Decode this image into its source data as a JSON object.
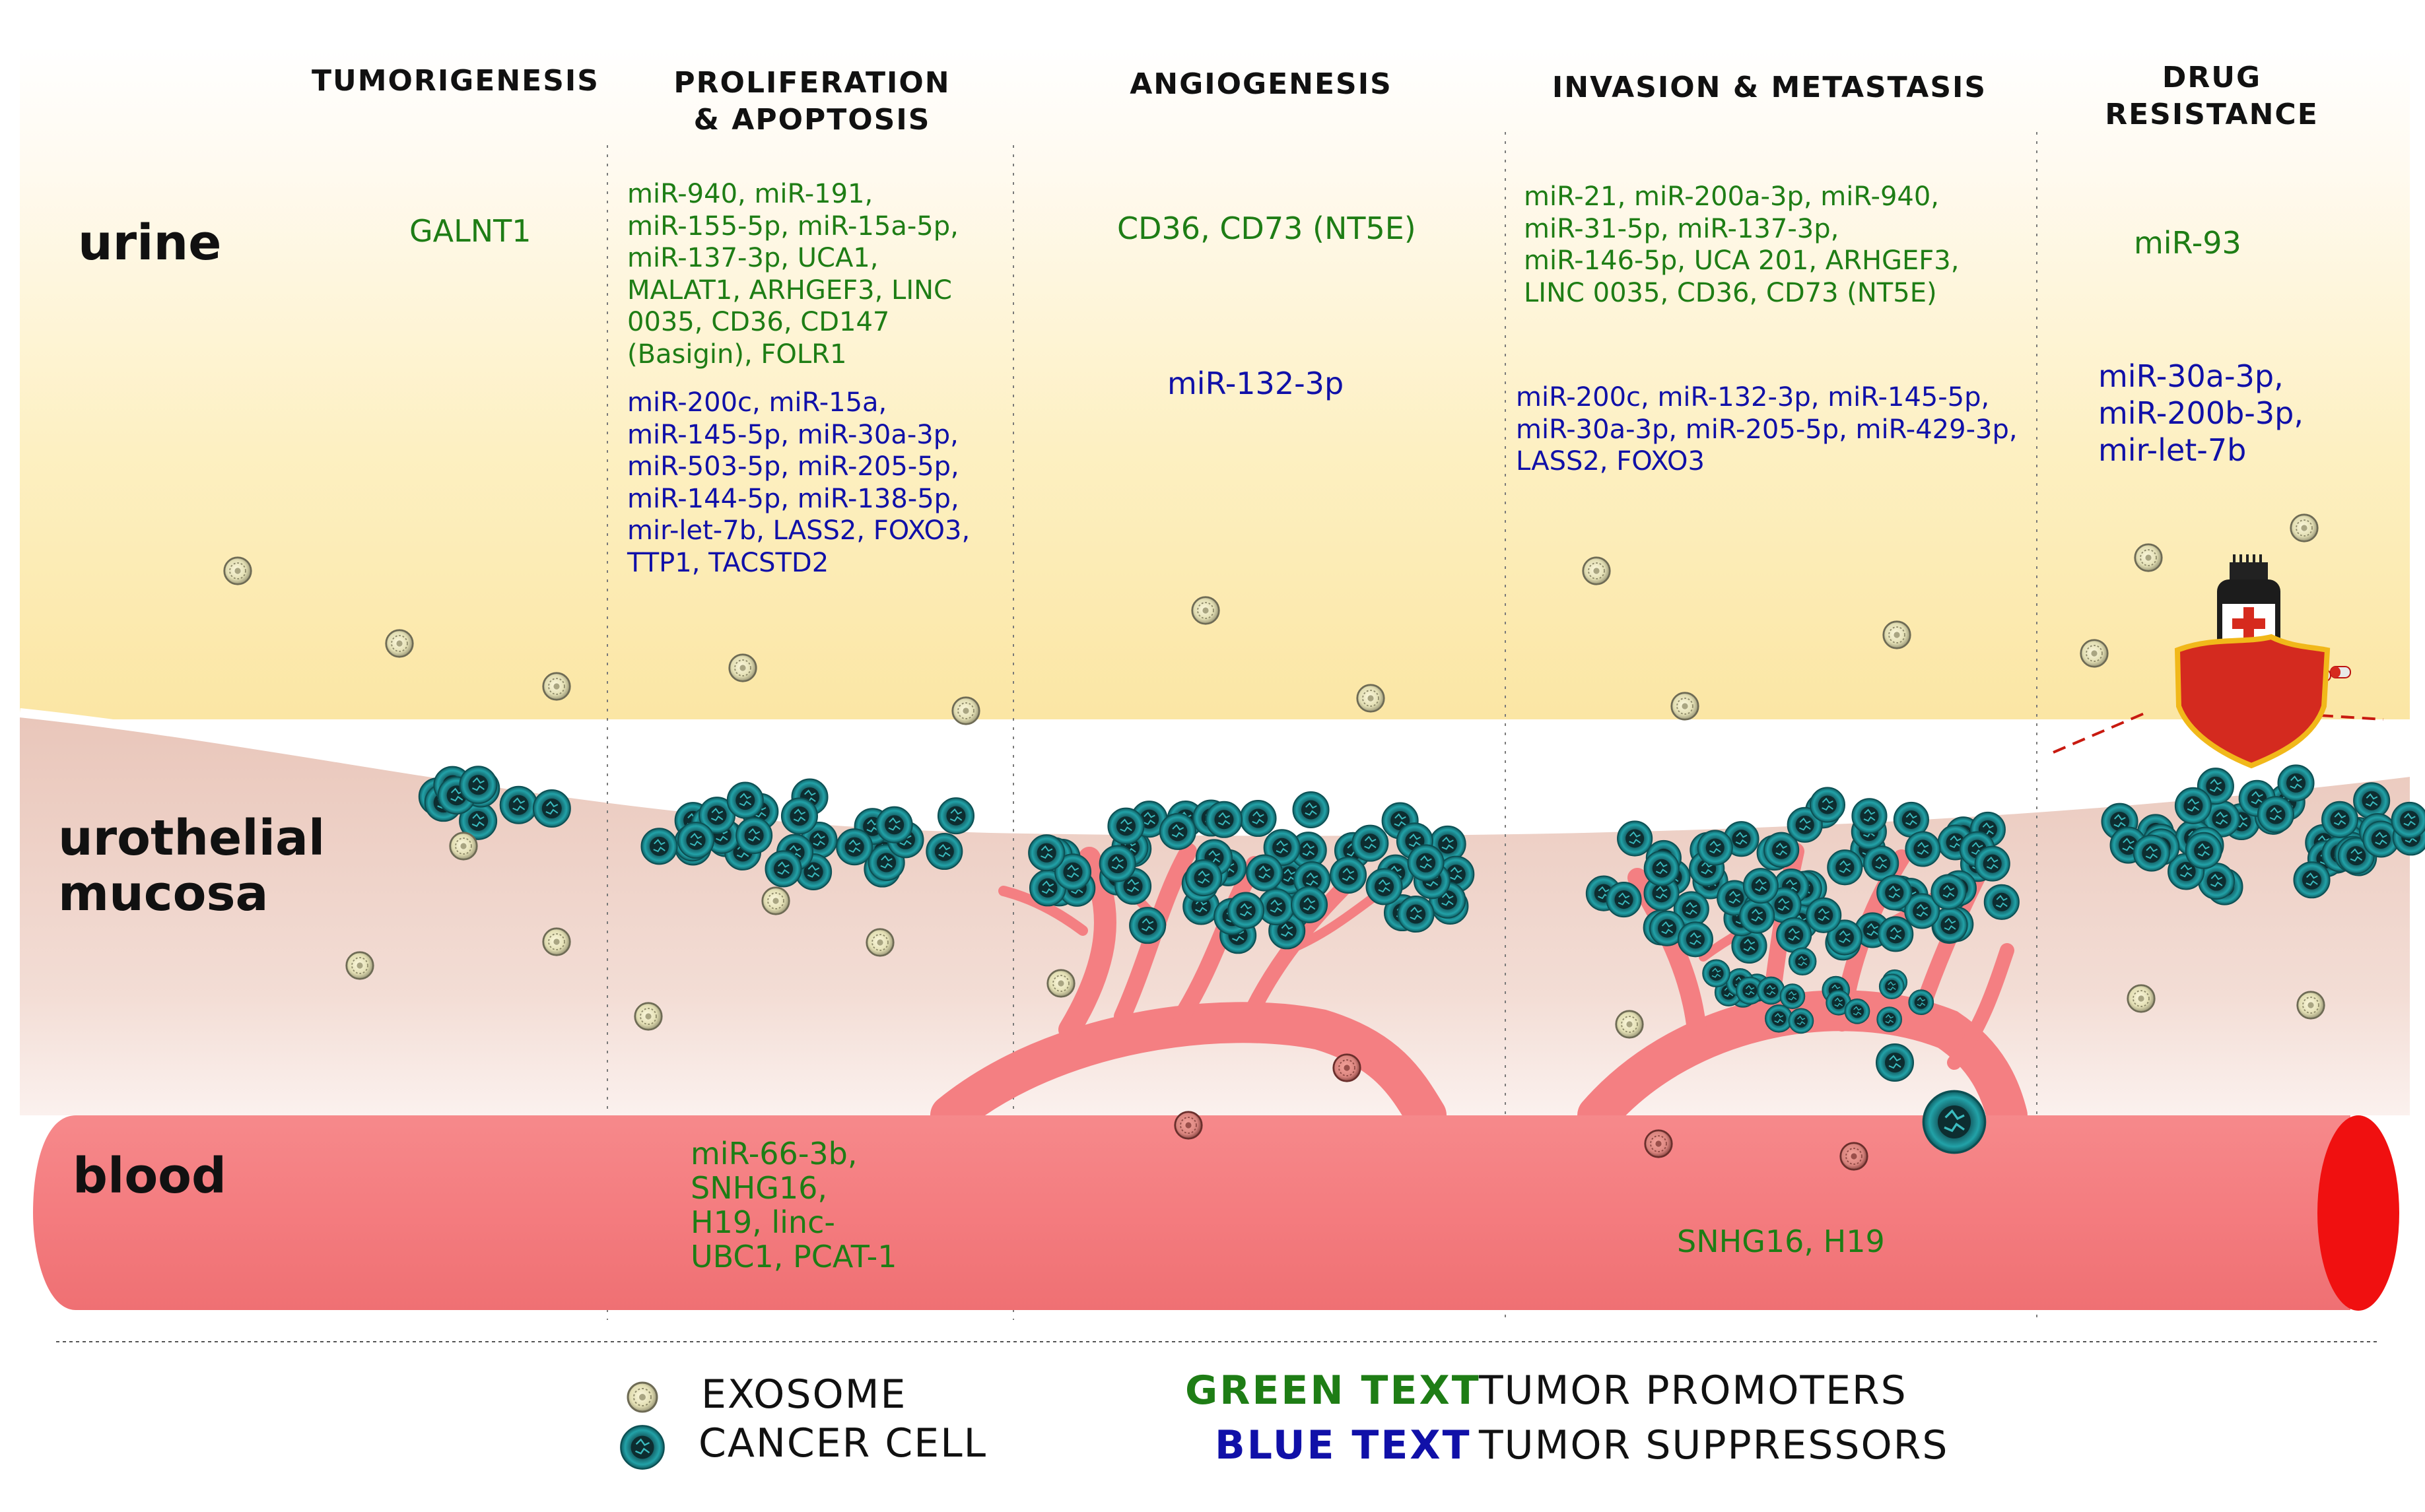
{
  "headers": {
    "tumorigenesis": "TUMORIGENESIS",
    "proliferation": "PROLIFERATION\n& APOPTOSIS",
    "angiogenesis": "ANGIOGENESIS",
    "invasion": "INVASION & METASTASIS",
    "drug_resistance": "DRUG\nRESISTANCE"
  },
  "layers": {
    "urine": "urine",
    "mucosa": "urothelial\nmucosa",
    "blood": "blood"
  },
  "urine": {
    "tumorigenesis_promoters": "GALNT1",
    "proliferation_promoters": "miR-940, miR-191,\nmiR-155-5p, miR-15a-5p,\nmiR-137-3p, UCA1,\nMALAT1, ARHGEF3, LINC\n0035, CD36, CD147\n(Basigin), FOLR1",
    "proliferation_suppressors": "miR-200c, miR-15a,\nmiR-145-5p, miR-30a-3p,\nmiR-503-5p, miR-205-5p,\nmiR-144-5p, miR-138-5p,\nmir-let-7b, LASS2, FOXO3,\nTTP1, TACSTD2",
    "angiogenesis_promoters": "CD36, CD73 (NT5E)",
    "angiogenesis_suppressors": "miR-132-3p",
    "invasion_promoters": "miR-21, miR-200a-3p, miR-940,\nmiR-31-5p, miR-137-3p,\nmiR-146-5p, UCA 201, ARHGEF3,\nLINC 0035, CD36, CD73 (NT5E)",
    "invasion_suppressors": "miR-200c, miR-132-3p, miR-145-5p,\nmiR-30a-3p, miR-205-5p, miR-429-3p,\nLASS2, FOXO3",
    "drug_promoters": "miR-93",
    "drug_suppressors": "miR-30a-3p,\nmiR-200b-3p,\nmir-let-7b"
  },
  "blood": {
    "proliferation_promoters": "miR-66-3b,\nSNHG16,\nH19, linc-\nUBC1, PCAT-1",
    "invasion_promoters": "SNHG16, H19"
  },
  "legend": {
    "exosome": "EXOSOME",
    "cancer_cell": "CANCER CELL",
    "green_key": "GREEN TEXT",
    "green_meaning": "TUMOR PROMOTERS",
    "blue_key": "BLUE TEXT",
    "blue_meaning": "TUMOR SUPPRESSORS"
  },
  "colors": {
    "promoter_text": "#1e7d15",
    "suppressor_text": "#1010a8",
    "cancer_cell": "#1fa3a8",
    "blood_vessel": "#f47f82",
    "vessel_end": "#f01010",
    "urine_bg": "#fdf0c2",
    "mucosa_bg": "#e8c4b8",
    "shield": "#d42a1f"
  },
  "icons": {
    "exosome": "exosome-icon",
    "cancer_cell": "cancer-cell-icon",
    "drug_bottle": "drug-bottle-icon",
    "shield": "shield-icon",
    "pill": "pill-icon"
  }
}
